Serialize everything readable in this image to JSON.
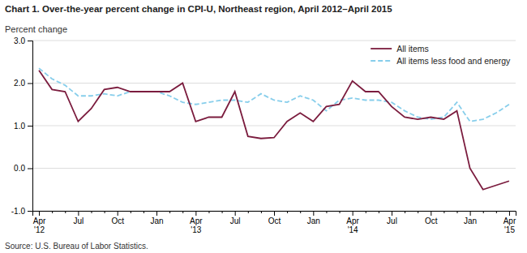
{
  "chart_data": {
    "type": "line",
    "title": "Chart 1. Over-the-year percent change in CPI-U, Northeast region, April 2012–April 2015",
    "y_label": "Percent change",
    "annotations": [
      "Source: U.S. Bureau of Labor Statistics."
    ],
    "categories": [
      "Apr\n'12",
      null,
      null,
      "Jul",
      null,
      null,
      "Oct",
      null,
      null,
      "Jan",
      null,
      null,
      "Apr\n'13",
      null,
      null,
      "Jul",
      null,
      null,
      "Oct",
      null,
      null,
      "Jan",
      null,
      null,
      "Apr\n'14",
      null,
      null,
      "Jul",
      null,
      null,
      "Oct",
      null,
      null,
      "Jan",
      null,
      null,
      "Apr\n'15"
    ],
    "series": [
      {
        "name": "All items",
        "color": "#7B1C3E",
        "line_style": "solid",
        "values": [
          2.3,
          1.85,
          1.8,
          1.1,
          1.4,
          1.85,
          1.9,
          1.8,
          1.8,
          1.8,
          1.8,
          2.0,
          1.1,
          1.2,
          1.2,
          1.8,
          0.75,
          0.7,
          0.72,
          1.1,
          1.3,
          1.1,
          1.45,
          1.5,
          2.05,
          1.8,
          1.8,
          1.45,
          1.2,
          1.15,
          1.2,
          1.15,
          1.35,
          0.0,
          -0.5,
          -0.4,
          -0.3
        ]
      },
      {
        "name": "All items less food and energy",
        "color": "#87CEEB",
        "line_style": "dashed",
        "values": [
          2.35,
          2.1,
          1.95,
          1.7,
          1.7,
          1.75,
          1.7,
          1.8,
          1.8,
          1.8,
          1.7,
          1.55,
          1.5,
          1.55,
          1.6,
          1.6,
          1.55,
          1.75,
          1.6,
          1.55,
          1.7,
          1.6,
          1.35,
          1.6,
          1.65,
          1.6,
          1.6,
          1.55,
          1.35,
          1.2,
          1.15,
          1.2,
          1.55,
          1.1,
          1.15,
          1.3,
          1.5
        ]
      }
    ],
    "ylim": [
      -1.0,
      3.0
    ],
    "yticks": [
      {
        "value": -1.0,
        "label": "-1.0"
      },
      {
        "value": 0.0,
        "label": "0.0"
      },
      {
        "value": 1.0,
        "label": "1.0"
      },
      {
        "value": 2.0,
        "label": "2.0"
      },
      {
        "value": 3.0,
        "label": "3.0"
      }
    ],
    "grid": true,
    "legend": "upper right"
  }
}
